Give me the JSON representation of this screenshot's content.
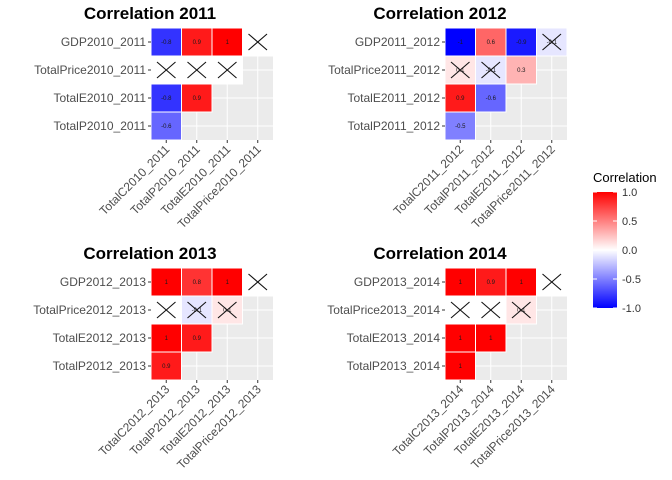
{
  "colors": {
    "low": "#0000FF",
    "mid": "#FFFFFF",
    "high": "#FF0000",
    "panel_bg": "#EBEBEB",
    "grid": "#FFFFFF"
  },
  "legend": {
    "title": "Correlation",
    "ticks": [
      "1.0",
      "0.5",
      "0.0",
      "-0.5",
      "-1.0"
    ],
    "tick_values": [
      1.0,
      0.5,
      0.0,
      -0.5,
      -1.0
    ],
    "limits": [
      -1,
      1
    ]
  },
  "chart_data": [
    {
      "type": "heatmap",
      "title": "Correlation 2011",
      "rows": [
        "GDP2010_2011",
        "TotalPrice2010_2011",
        "TotalE2010_2011",
        "TotalP2010_2011"
      ],
      "columns": [
        "TotalC2010_2011",
        "TotalP2010_2011",
        "TotalE2010_2011",
        "TotalPrice2010_2011"
      ],
      "cells": [
        {
          "row": 0,
          "col": 0,
          "value": -0.8,
          "label": "-0.8",
          "crossed": false
        },
        {
          "row": 0,
          "col": 1,
          "value": 0.9,
          "label": "0.9",
          "crossed": false
        },
        {
          "row": 0,
          "col": 2,
          "value": 1.0,
          "label": "1",
          "crossed": false
        },
        {
          "row": 0,
          "col": 3,
          "value": 0.0,
          "label": "",
          "crossed": true
        },
        {
          "row": 1,
          "col": 0,
          "value": 0.0,
          "label": "",
          "crossed": true
        },
        {
          "row": 1,
          "col": 1,
          "value": 0.0,
          "label": "",
          "crossed": true
        },
        {
          "row": 1,
          "col": 2,
          "value": 0.0,
          "label": "",
          "crossed": true
        },
        {
          "row": 2,
          "col": 0,
          "value": -0.8,
          "label": "-0.8",
          "crossed": false
        },
        {
          "row": 2,
          "col": 1,
          "value": 0.9,
          "label": "0.9",
          "crossed": false
        },
        {
          "row": 3,
          "col": 0,
          "value": -0.6,
          "label": "-0.6",
          "crossed": false
        }
      ]
    },
    {
      "type": "heatmap",
      "title": "Correlation 2012",
      "rows": [
        "GDP2011_2012",
        "TotalPrice2011_2012",
        "TotalE2011_2012",
        "TotalP2011_2012"
      ],
      "columns": [
        "TotalC2011_2012",
        "TotalP2011_2012",
        "TotalE2011_2012",
        "TotalPrice2011_2012"
      ],
      "cells": [
        {
          "row": 0,
          "col": 0,
          "value": -1.0,
          "label": "-1",
          "crossed": false
        },
        {
          "row": 0,
          "col": 1,
          "value": 0.6,
          "label": "0.6",
          "crossed": false
        },
        {
          "row": 0,
          "col": 2,
          "value": -0.9,
          "label": "-0.9",
          "crossed": false
        },
        {
          "row": 0,
          "col": 3,
          "value": -0.1,
          "label": "-0.1",
          "crossed": true
        },
        {
          "row": 1,
          "col": 0,
          "value": 0.1,
          "label": "0.1",
          "crossed": true
        },
        {
          "row": 1,
          "col": 1,
          "value": -0.1,
          "label": "-0.1",
          "crossed": true
        },
        {
          "row": 1,
          "col": 2,
          "value": 0.3,
          "label": "0.3",
          "crossed": false
        },
        {
          "row": 2,
          "col": 0,
          "value": 0.9,
          "label": "0.9",
          "crossed": false
        },
        {
          "row": 2,
          "col": 1,
          "value": -0.6,
          "label": "-0.6",
          "crossed": false
        },
        {
          "row": 3,
          "col": 0,
          "value": -0.5,
          "label": "-0.5",
          "crossed": false
        }
      ]
    },
    {
      "type": "heatmap",
      "title": "Correlation 2013",
      "rows": [
        "GDP2012_2013",
        "TotalPrice2012_2013",
        "TotalE2012_2013",
        "TotalP2012_2013"
      ],
      "columns": [
        "TotalC2012_2013",
        "TotalP2012_2013",
        "TotalE2012_2013",
        "TotalPrice2012_2013"
      ],
      "cells": [
        {
          "row": 0,
          "col": 0,
          "value": 1.0,
          "label": "1",
          "crossed": false
        },
        {
          "row": 0,
          "col": 1,
          "value": 0.8,
          "label": "0.8",
          "crossed": false
        },
        {
          "row": 0,
          "col": 2,
          "value": 1.0,
          "label": "1",
          "crossed": false
        },
        {
          "row": 0,
          "col": 3,
          "value": 0.0,
          "label": "",
          "crossed": true
        },
        {
          "row": 1,
          "col": 0,
          "value": 0.0,
          "label": "",
          "crossed": true
        },
        {
          "row": 1,
          "col": 1,
          "value": -0.1,
          "label": "-0.1",
          "crossed": true
        },
        {
          "row": 1,
          "col": 2,
          "value": 0.1,
          "label": "0.1",
          "crossed": true
        },
        {
          "row": 2,
          "col": 0,
          "value": 1.0,
          "label": "1",
          "crossed": false
        },
        {
          "row": 2,
          "col": 1,
          "value": 0.9,
          "label": "0.9",
          "crossed": false
        },
        {
          "row": 3,
          "col": 0,
          "value": 0.9,
          "label": "0.9",
          "crossed": false
        }
      ]
    },
    {
      "type": "heatmap",
      "title": "Correlation 2014",
      "rows": [
        "GDP2013_2014",
        "TotalPrice2013_2014",
        "TotalE2013_2014",
        "TotalP2013_2014"
      ],
      "columns": [
        "TotalC2013_2014",
        "TotalP2013_2014",
        "TotalE2013_2014",
        "TotalPrice2013_2014"
      ],
      "cells": [
        {
          "row": 0,
          "col": 0,
          "value": 1.0,
          "label": "1",
          "crossed": false
        },
        {
          "row": 0,
          "col": 1,
          "value": 0.9,
          "label": "0.9",
          "crossed": false
        },
        {
          "row": 0,
          "col": 2,
          "value": 1.0,
          "label": "1",
          "crossed": false
        },
        {
          "row": 0,
          "col": 3,
          "value": 0.0,
          "label": "",
          "crossed": true
        },
        {
          "row": 1,
          "col": 0,
          "value": 0.0,
          "label": "",
          "crossed": true
        },
        {
          "row": 1,
          "col": 1,
          "value": 0.0,
          "label": "",
          "crossed": true
        },
        {
          "row": 1,
          "col": 2,
          "value": 0.1,
          "label": "0.1",
          "crossed": true
        },
        {
          "row": 2,
          "col": 0,
          "value": 1.0,
          "label": "1",
          "crossed": false
        },
        {
          "row": 2,
          "col": 1,
          "value": 1.0,
          "label": "1",
          "crossed": false
        },
        {
          "row": 3,
          "col": 0,
          "value": 1.0,
          "label": "1",
          "crossed": false
        }
      ]
    }
  ]
}
